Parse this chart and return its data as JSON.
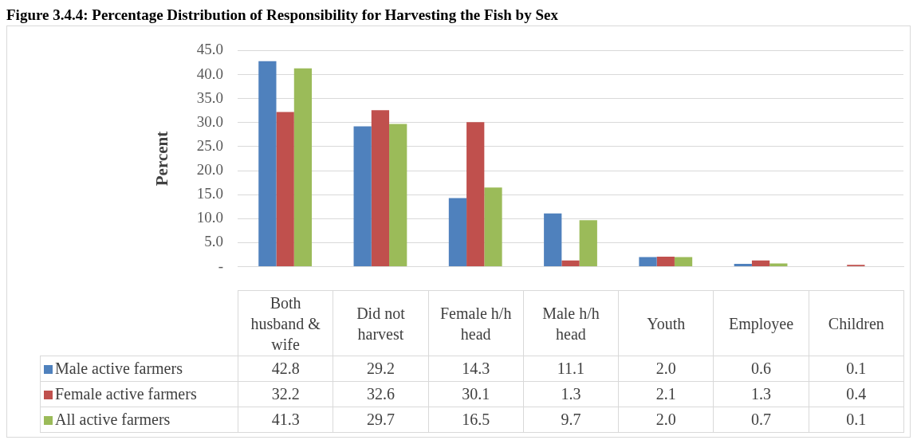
{
  "chart_data": {
    "type": "bar",
    "title": "Figure 3.4.4: Percentage Distribution of Responsibility for Harvesting the Fish by Sex",
    "ylabel": "Percent",
    "categories": [
      "Both husband & wife",
      "Did not harvest",
      "Female h/h head",
      "Male h/h head",
      "Youth",
      "Employee",
      "Children"
    ],
    "series": [
      {
        "name": "Male active farmers",
        "color": "#4f81bd",
        "values": [
          42.8,
          29.2,
          14.3,
          11.1,
          2.0,
          0.6,
          0.1
        ],
        "value_labels": [
          "42.8",
          "29.2",
          "14.3",
          "11.1",
          "2.0",
          "0.6",
          "0.1"
        ]
      },
      {
        "name": "Female active farmers",
        "color": "#c0504d",
        "values": [
          32.2,
          32.6,
          30.1,
          1.3,
          2.1,
          1.3,
          0.4
        ],
        "value_labels": [
          "32.2",
          "32.6",
          "30.1",
          "1.3",
          "2.1",
          "1.3",
          "0.4"
        ]
      },
      {
        "name": "All active farmers",
        "color": "#9bbb59",
        "values": [
          41.3,
          29.7,
          16.5,
          9.7,
          2.0,
          0.7,
          0.1
        ],
        "value_labels": [
          "41.3",
          "29.7",
          "16.5",
          "9.7",
          "2.0",
          "0.7",
          "0.1"
        ]
      }
    ],
    "ylim": [
      0,
      45
    ],
    "yticks": [
      {
        "value": 0,
        "label": "-"
      },
      {
        "value": 5,
        "label": "5.0"
      },
      {
        "value": 10,
        "label": "10.0"
      },
      {
        "value": 15,
        "label": "15.0"
      },
      {
        "value": 20,
        "label": "20.0"
      },
      {
        "value": 25,
        "label": "25.0"
      },
      {
        "value": 30,
        "label": "30.0"
      },
      {
        "value": 35,
        "label": "35.0"
      },
      {
        "value": 40,
        "label": "40.0"
      },
      {
        "value": 45,
        "label": "45.0"
      }
    ],
    "grid": "y",
    "legend": "bottom"
  }
}
